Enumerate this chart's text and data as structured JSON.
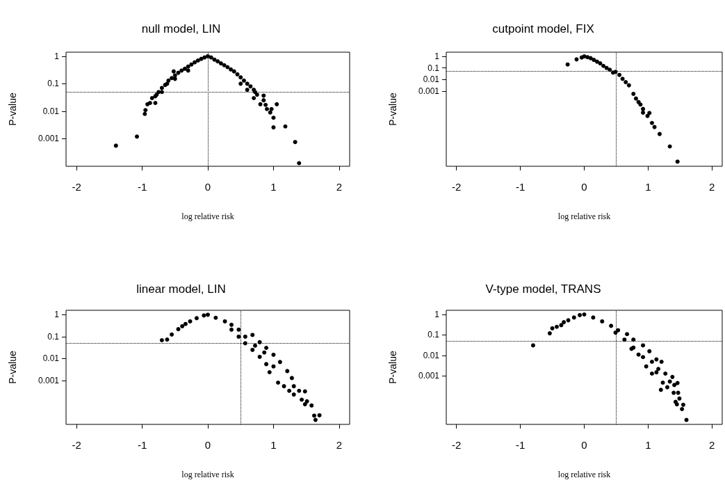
{
  "chart_data": [
    {
      "type": "scatter",
      "title": "null model, LIN",
      "xlabel": "log relative risk",
      "ylabel": "P-value",
      "log": "y",
      "marker": "circle",
      "color": "#000000",
      "xlim": [
        -2.16,
        2.16
      ],
      "xticks": [
        -2,
        -1,
        0,
        1,
        2
      ],
      "ylim": [
        0.0001,
        1.4
      ],
      "yticks": [
        0.001,
        0.01,
        0.1,
        1
      ],
      "ref_lines": [
        {
          "axis": "y",
          "value": 0.05,
          "line_style": "dotted"
        },
        {
          "axis": "x",
          "value": 0,
          "line_style": "dotted"
        }
      ],
      "x": [
        0,
        -0.05,
        -0.1,
        -0.15,
        -0.2,
        -0.25,
        -0.3,
        -0.35,
        -0.4,
        -0.45,
        -0.5,
        -0.55,
        -0.6,
        -0.62,
        -0.65,
        -0.7,
        -0.75,
        -0.78,
        -0.8,
        -0.85,
        -0.88,
        -0.92,
        -0.95,
        -0.96,
        -0.52,
        -0.3,
        -0.5,
        -0.7,
        -0.8,
        -1.08,
        -1.4,
        0.05,
        0.1,
        0.15,
        0.2,
        0.25,
        0.3,
        0.35,
        0.4,
        0.45,
        0.5,
        0.55,
        0.6,
        0.65,
        0.7,
        0.72,
        0.75,
        0.85,
        0.85,
        0.88,
        0.9,
        0.95,
        0.97,
        1.0,
        1.0,
        1.05,
        1.18,
        1.33,
        1.39,
        0.6,
        0.7,
        0.8,
        0.5
      ],
      "values": [
        1,
        0.9,
        0.8,
        0.7,
        0.6,
        0.5,
        0.42,
        0.35,
        0.3,
        0.25,
        0.2,
        0.16,
        0.13,
        0.1,
        0.09,
        0.07,
        0.05,
        0.04,
        0.035,
        0.03,
        0.02,
        0.018,
        0.011,
        0.008,
        0.28,
        0.3,
        0.15,
        0.05,
        0.02,
        0.0012,
        0.00056,
        0.9,
        0.75,
        0.65,
        0.55,
        0.47,
        0.4,
        0.33,
        0.28,
        0.22,
        0.17,
        0.13,
        0.1,
        0.08,
        0.06,
        0.05,
        0.04,
        0.037,
        0.025,
        0.017,
        0.012,
        0.009,
        0.012,
        0.0058,
        0.0026,
        0.018,
        0.0028,
        0.00076,
        0.00013,
        0.06,
        0.03,
        0.018,
        0.1
      ]
    },
    {
      "type": "scatter",
      "title": "cutpoint model, FIX",
      "xlabel": "log relative risk",
      "ylabel": "P-value",
      "log": "y",
      "marker": "circle",
      "color": "#000000",
      "xlim": [
        -2.16,
        2.16
      ],
      "xticks": [
        -2,
        -1,
        0,
        1,
        2
      ],
      "ylim": [
        3.3e-10,
        2.3
      ],
      "yticks": [
        0.001,
        0.01,
        0.1,
        1
      ],
      "ref_lines": [
        {
          "axis": "y",
          "value": 0.05,
          "line_style": "dotted"
        },
        {
          "axis": "x",
          "value": 0.5,
          "line_style": "dotted"
        }
      ],
      "x": [
        -0.26,
        -0.12,
        -0.04,
        0,
        0.05,
        0.1,
        0.15,
        0.2,
        0.25,
        0.3,
        0.35,
        0.4,
        0.45,
        0.49,
        0.55,
        0.6,
        0.65,
        0.7,
        0.77,
        0.81,
        0.85,
        0.88,
        0.92,
        0.92,
        0.99,
        1.02,
        1.06,
        1.1,
        1.18,
        1.34,
        1.46
      ],
      "values": [
        0.2,
        0.55,
        0.8,
        1,
        0.85,
        0.7,
        0.5,
        0.35,
        0.25,
        0.15,
        0.1,
        0.07,
        0.04,
        0.046,
        0.025,
        0.0115,
        0.006,
        0.0032,
        0.00058,
        0.00023,
        0.000115,
        7e-05,
        2.9e-05,
        1.4e-05,
        7.2e-06,
        1.3e-05,
        1.8e-06,
        8e-07,
        2e-07,
        1.7e-08,
        8.3e-10
      ]
    },
    {
      "type": "scatter",
      "title": "linear model, LIN",
      "xlabel": "log relative risk",
      "ylabel": "P-value",
      "log": "y",
      "marker": "circle",
      "color": "#000000",
      "xlim": [
        -2.16,
        2.16
      ],
      "xticks": [
        -2,
        -1,
        0,
        1,
        2
      ],
      "ylim": [
        1e-05,
        1.6
      ],
      "yticks": [
        0.001,
        0.01,
        0.1,
        1
      ],
      "ref_lines": [
        {
          "axis": "y",
          "value": 0.05,
          "line_style": "dotted"
        },
        {
          "axis": "x",
          "value": 0.5,
          "line_style": "dotted"
        }
      ],
      "x": [
        -0.7,
        -0.62,
        -0.55,
        -0.45,
        -0.39,
        -0.34,
        -0.27,
        -0.17,
        -0.06,
        0,
        0.12,
        0.26,
        0.36,
        0.47,
        0.57,
        0.68,
        0.79,
        0.89,
        1.0,
        1.1,
        1.21,
        0.36,
        0.47,
        0.57,
        0.68,
        0.79,
        0.89,
        0.94,
        1.07,
        1.16,
        0.72,
        0.86,
        1.0,
        1.28,
        1.24,
        1.31,
        1.31,
        1.39,
        1.48,
        1.43,
        1.51,
        1.48,
        1.58,
        1.62,
        1.7,
        1.64
      ],
      "values": [
        0.069,
        0.074,
        0.126,
        0.22,
        0.3,
        0.38,
        0.5,
        0.7,
        0.93,
        1,
        0.73,
        0.5,
        0.35,
        0.21,
        0.1,
        0.12,
        0.056,
        0.031,
        0.015,
        0.007,
        0.0027,
        0.21,
        0.1,
        0.05,
        0.025,
        0.012,
        0.0056,
        0.0024,
        0.0008,
        0.00055,
        0.039,
        0.019,
        0.0044,
        0.0013,
        0.00034,
        0.00055,
        0.00023,
        0.00034,
        0.00032,
        0.000134,
        0.000113,
        8.3e-05,
        7.3e-05,
        2.5e-05,
        2.6e-05,
        1.6e-05
      ]
    },
    {
      "type": "scatter",
      "title": "V-type model, TRANS",
      "xlabel": "log relative risk",
      "ylabel": "P-value",
      "log": "y",
      "marker": "circle",
      "color": "#000000",
      "xlim": [
        -2.16,
        2.16
      ],
      "xticks": [
        -2,
        -1,
        0,
        1,
        2
      ],
      "ylim": [
        4.3e-06,
        1.6
      ],
      "yticks": [
        0.001,
        0.01,
        0.1,
        1
      ],
      "ref_lines": [
        {
          "axis": "y",
          "value": 0.05,
          "line_style": "dotted"
        },
        {
          "axis": "x",
          "value": 0.5,
          "line_style": "dotted"
        }
      ],
      "x": [
        -0.8,
        -0.54,
        -0.5,
        -0.43,
        -0.36,
        -0.32,
        -0.25,
        -0.16,
        -0.07,
        0,
        0.14,
        0.28,
        0.42,
        0.53,
        0.67,
        0.77,
        0.92,
        1.02,
        1.13,
        1.21,
        0.49,
        0.63,
        0.74,
        0.85,
        0.97,
        1.06,
        1.13,
        1.2,
        0.77,
        0.92,
        1.06,
        1.16,
        1.27,
        1.23,
        1.3,
        1.38,
        1.34,
        1.41,
        1.46,
        1.4,
        1.47,
        1.49,
        1.43,
        1.45,
        1.55,
        1.53,
        1.6
      ],
      "values": [
        0.031,
        0.12,
        0.21,
        0.25,
        0.3,
        0.42,
        0.52,
        0.71,
        0.93,
        1,
        0.71,
        0.46,
        0.28,
        0.17,
        0.11,
        0.059,
        0.031,
        0.016,
        0.0064,
        0.0049,
        0.13,
        0.059,
        0.021,
        0.011,
        0.0029,
        0.0013,
        0.0015,
        0.00021,
        0.024,
        0.0083,
        0.0049,
        0.0022,
        0.0013,
        0.00047,
        0.00028,
        0.00089,
        0.00053,
        0.00036,
        0.00045,
        0.00015,
        0.00015,
        7.9e-05,
        5.4e-05,
        4.1e-05,
        3.9e-05,
        2.4e-05,
        7.1e-06
      ]
    }
  ]
}
